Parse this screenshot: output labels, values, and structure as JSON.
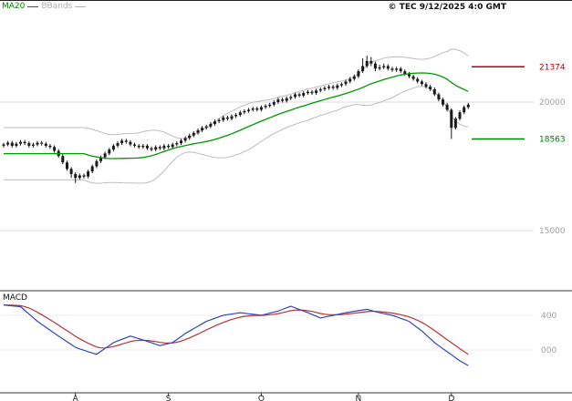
{
  "header": {
    "copyright": "© TEC 9/12/2025 4:0 GMT"
  },
  "legend": {
    "items": [
      {
        "label": "MA20",
        "color": "#008000"
      },
      {
        "label": "BBands",
        "color": "#b0b0b0"
      }
    ]
  },
  "macd": {
    "label": "MACD",
    "axis_labels": [
      {
        "text": "400",
        "value": 400
      },
      {
        "text": "000",
        "value": 0
      }
    ]
  },
  "price_axis": {
    "grid_labels": [
      {
        "text": "20000",
        "value": 20000
      },
      {
        "text": "15000",
        "value": 15000
      }
    ],
    "level_labels": [
      {
        "text": "21374",
        "value": 21374,
        "color": "#bb0000"
      },
      {
        "text": "18563",
        "value": 18563,
        "color": "#008000"
      }
    ]
  },
  "x_axis": {
    "ticks": [
      {
        "label": "A",
        "index": 17
      },
      {
        "label": "S",
        "index": 39
      },
      {
        "label": "O",
        "index": 61
      },
      {
        "label": "N",
        "index": 84
      },
      {
        "label": "D",
        "index": 106
      }
    ]
  },
  "colors": {
    "candle": "#1a1a1a",
    "ma20": "#009900",
    "bbands": "#bdbdbd",
    "grid": "#dedede",
    "axis": "#333333",
    "axis_label": "#a0a0a0",
    "macd_line": "#3344bb",
    "signal_line": "#bb3333"
  },
  "chart_data": {
    "type": "candlestick",
    "title": "",
    "indicators": [
      "MA20",
      "BBands(20,2)",
      "MACD(12,26,9)"
    ],
    "x_tick_labels": [
      "A",
      "S",
      "O",
      "N",
      "D"
    ],
    "price_gridlines": [
      20000,
      15000
    ],
    "price_levels": {
      "resistance": 21374,
      "support": 18563
    },
    "price_axis_range_approx": [
      12800,
      23200
    ],
    "macd_gridlines": [
      400,
      0
    ],
    "macd_axis_range_approx": [
      -480,
      680
    ],
    "ma_period": 20,
    "bband_sigma": 2,
    "candles_ohlc": [
      [
        18300,
        18420,
        18230,
        18350
      ],
      [
        18350,
        18490,
        18280,
        18420
      ],
      [
        18420,
        18490,
        18230,
        18300
      ],
      [
        18300,
        18450,
        18230,
        18380
      ],
      [
        18380,
        18520,
        18310,
        18450
      ],
      [
        18450,
        18520,
        18330,
        18400
      ],
      [
        18400,
        18470,
        18230,
        18300
      ],
      [
        18300,
        18420,
        18230,
        18350
      ],
      [
        18350,
        18490,
        18280,
        18420
      ],
      [
        18420,
        18490,
        18310,
        18380
      ],
      [
        18380,
        18450,
        18230,
        18300
      ],
      [
        18300,
        18370,
        18180,
        18250
      ],
      [
        18250,
        18320,
        18030,
        18100
      ],
      [
        18100,
        18170,
        17830,
        17900
      ],
      [
        17900,
        17970,
        17580,
        17650
      ],
      [
        17650,
        17720,
        17330,
        17400
      ],
      [
        17400,
        17470,
        17050,
        17200
      ],
      [
        17200,
        17270,
        16850,
        17050
      ],
      [
        17050,
        17220,
        16980,
        17150
      ],
      [
        17150,
        17220,
        17030,
        17100
      ],
      [
        17100,
        17370,
        17030,
        17300
      ],
      [
        17300,
        17570,
        17230,
        17500
      ],
      [
        17500,
        17770,
        17430,
        17700
      ],
      [
        17700,
        17920,
        17630,
        17850
      ],
      [
        17850,
        18070,
        17780,
        18000
      ],
      [
        18000,
        18220,
        17930,
        18150
      ],
      [
        18150,
        18370,
        18080,
        18300
      ],
      [
        18300,
        18470,
        18230,
        18400
      ],
      [
        18400,
        18570,
        18330,
        18500
      ],
      [
        18500,
        18570,
        18380,
        18450
      ],
      [
        18450,
        18520,
        18280,
        18350
      ],
      [
        18350,
        18420,
        18230,
        18300
      ],
      [
        18300,
        18370,
        18180,
        18250
      ],
      [
        18250,
        18370,
        18180,
        18300
      ],
      [
        18300,
        18370,
        18130,
        18200
      ],
      [
        18200,
        18270,
        18080,
        18150
      ],
      [
        18150,
        18320,
        18080,
        18250
      ],
      [
        18250,
        18320,
        18130,
        18200
      ],
      [
        18200,
        18370,
        18130,
        18300
      ],
      [
        18300,
        18370,
        18180,
        18250
      ],
      [
        18250,
        18420,
        18180,
        18350
      ],
      [
        18350,
        18470,
        18280,
        18400
      ],
      [
        18400,
        18570,
        18330,
        18500
      ],
      [
        18500,
        18670,
        18430,
        18600
      ],
      [
        18600,
        18770,
        18530,
        18700
      ],
      [
        18700,
        18870,
        18630,
        18800
      ],
      [
        18800,
        18970,
        18730,
        18900
      ],
      [
        18900,
        19070,
        18830,
        19000
      ],
      [
        19000,
        19120,
        18930,
        19050
      ],
      [
        19050,
        19220,
        18980,
        19150
      ],
      [
        19150,
        19320,
        19080,
        19250
      ],
      [
        19250,
        19370,
        19180,
        19300
      ],
      [
        19300,
        19470,
        19230,
        19400
      ],
      [
        19400,
        19470,
        19280,
        19350
      ],
      [
        19350,
        19520,
        19280,
        19450
      ],
      [
        19450,
        19570,
        19380,
        19500
      ],
      [
        19500,
        19670,
        19430,
        19600
      ],
      [
        19600,
        19720,
        19530,
        19650
      ],
      [
        19650,
        19770,
        19580,
        19700
      ],
      [
        19700,
        19820,
        19630,
        19750
      ],
      [
        19750,
        19820,
        19630,
        19700
      ],
      [
        19700,
        19870,
        19630,
        19800
      ],
      [
        19800,
        19920,
        19730,
        19850
      ],
      [
        19850,
        19970,
        19780,
        19900
      ],
      [
        19900,
        20070,
        19830,
        20000
      ],
      [
        20000,
        20170,
        19930,
        20100
      ],
      [
        20100,
        20170,
        19980,
        20050
      ],
      [
        20050,
        20220,
        19980,
        20150
      ],
      [
        20150,
        20270,
        20080,
        20200
      ],
      [
        20200,
        20370,
        20130,
        20300
      ],
      [
        20300,
        20370,
        20180,
        20250
      ],
      [
        20250,
        20420,
        20180,
        20350
      ],
      [
        20350,
        20470,
        20280,
        20400
      ],
      [
        20400,
        20470,
        20280,
        20350
      ],
      [
        20350,
        20520,
        20280,
        20450
      ],
      [
        20450,
        20570,
        20380,
        20500
      ],
      [
        20500,
        20620,
        20430,
        20550
      ],
      [
        20550,
        20670,
        20480,
        20600
      ],
      [
        20600,
        20670,
        20480,
        20550
      ],
      [
        20550,
        20720,
        20480,
        20650
      ],
      [
        20650,
        20770,
        20580,
        20700
      ],
      [
        20700,
        20870,
        20630,
        20800
      ],
      [
        20800,
        20970,
        20730,
        20900
      ],
      [
        20900,
        21070,
        20830,
        21000
      ],
      [
        21000,
        21270,
        20930,
        21200
      ],
      [
        21200,
        21700,
        21130,
        21400
      ],
      [
        21400,
        21810,
        21330,
        21600
      ],
      [
        21600,
        21750,
        21400,
        21500
      ],
      [
        21500,
        21570,
        21200,
        21300
      ],
      [
        21300,
        21450,
        21230,
        21350
      ],
      [
        21350,
        21500,
        21280,
        21400
      ],
      [
        21400,
        21470,
        21230,
        21300
      ],
      [
        21300,
        21370,
        21180,
        21250
      ],
      [
        21250,
        21370,
        21180,
        21300
      ],
      [
        21300,
        21370,
        21130,
        21200
      ],
      [
        21200,
        21270,
        21030,
        21100
      ],
      [
        21100,
        21170,
        20930,
        21000
      ],
      [
        21000,
        21070,
        20830,
        20900
      ],
      [
        20900,
        20970,
        20730,
        20800
      ],
      [
        20800,
        20870,
        20630,
        20700
      ],
      [
        20700,
        20770,
        20530,
        20600
      ],
      [
        20600,
        20670,
        20430,
        20500
      ],
      [
        20500,
        20570,
        20230,
        20300
      ],
      [
        20300,
        20370,
        20030,
        20100
      ],
      [
        20100,
        20170,
        19830,
        19900
      ],
      [
        19900,
        19970,
        19630,
        19700
      ],
      [
        19700,
        19750,
        18563,
        19000
      ],
      [
        19000,
        19420,
        18930,
        19350
      ],
      [
        19350,
        19670,
        19280,
        19600
      ],
      [
        19600,
        19870,
        19530,
        19800
      ],
      [
        19800,
        19970,
        19730,
        19900
      ]
    ],
    "macd_line": [
      520,
      515,
      510,
      505,
      500,
      458,
      415,
      373,
      330,
      296,
      262,
      228,
      194,
      160,
      128,
      95,
      63,
      30,
      13,
      -3,
      -20,
      -35,
      -50,
      -16,
      18,
      51,
      85,
      104,
      123,
      141,
      160,
      145,
      130,
      115,
      99,
      83,
      66,
      50,
      62,
      73,
      85,
      120,
      155,
      190,
      218,
      246,
      274,
      302,
      330,
      348,
      365,
      383,
      400,
      408,
      415,
      423,
      430,
      424,
      418,
      412,
      406,
      400,
      413,
      425,
      438,
      450,
      468,
      487,
      505,
      486,
      467,
      449,
      430,
      410,
      390,
      370,
      380,
      390,
      400,
      410,
      420,
      430,
      438,
      446,
      454,
      462,
      470,
      457,
      443,
      430,
      420,
      410,
      400,
      383,
      365,
      348,
      330,
      293,
      257,
      220,
      175,
      130,
      85,
      50,
      15,
      -20,
      -55,
      -90,
      -125,
      -153,
      -180
    ],
    "signal_line": [
      520,
      519,
      517,
      515,
      512,
      501,
      484,
      462,
      435,
      407,
      378,
      348,
      317,
      286,
      254,
      222,
      191,
      158,
      129,
      103,
      78,
      56,
      34,
      24,
      23,
      29,
      40,
      53,
      67,
      82,
      97,
      107,
      111,
      112,
      110,
      104,
      97,
      87,
      82,
      80,
      81,
      89,
      102,
      120,
      139,
      161,
      183,
      207,
      232,
      255,
      277,
      298,
      318,
      336,
      352,
      366,
      379,
      388,
      394,
      398,
      399,
      399,
      402,
      407,
      413,
      420,
      430,
      441,
      454,
      460,
      462,
      459,
      453,
      445,
      434,
      421,
      413,
      408,
      407,
      407,
      410,
      414,
      419,
      424,
      430,
      436,
      443,
      446,
      445,
      442,
      438,
      432,
      426,
      417,
      407,
      395,
      382,
      364,
      343,
      318,
      290,
      258,
      223,
      189,
      154,
      119,
      84,
      49,
      15,
      -19,
      -51
    ]
  }
}
